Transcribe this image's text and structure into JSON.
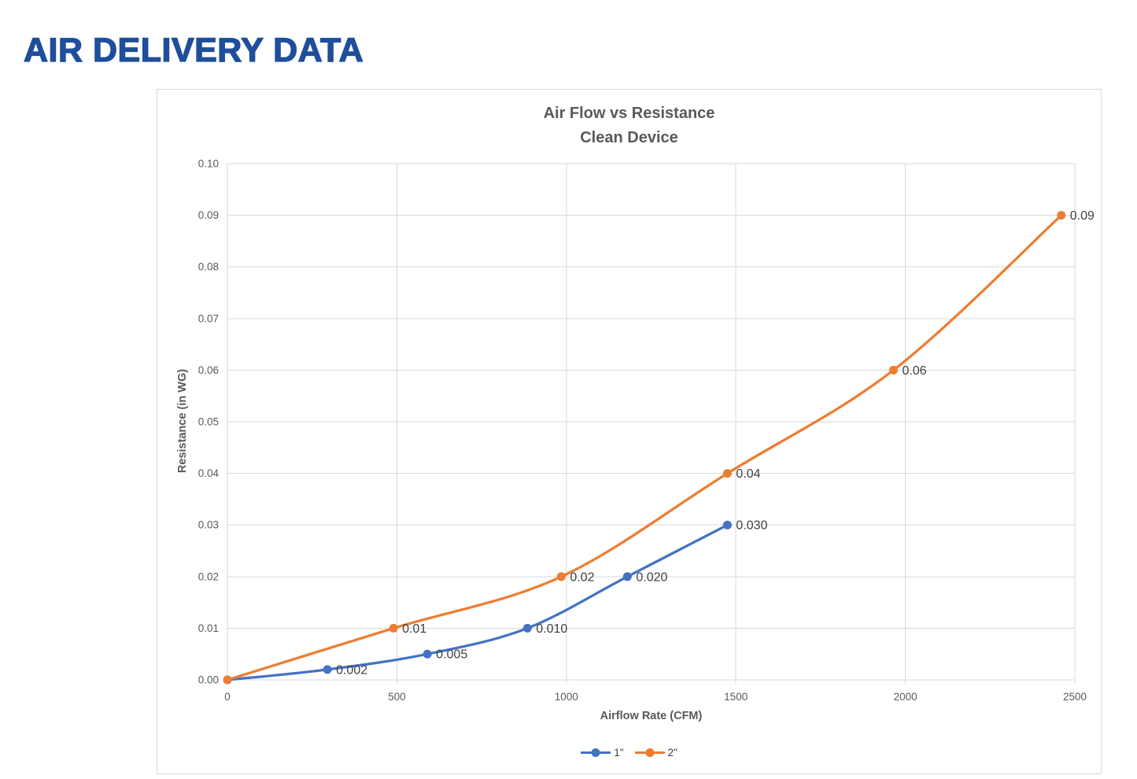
{
  "page": {
    "title": "AIR DELIVERY DATA"
  },
  "colors": {
    "heading": "#1f4e9b",
    "chart_text": "#595959",
    "data_label_text": "#404040",
    "gridline": "#d9d9d9",
    "series_blue": "#4472C4",
    "series_orange": "#ED7D31"
  },
  "chart_data": {
    "type": "line",
    "title": "Air Flow vs Resistance",
    "subtitle": "Clean Device",
    "xlabel": "Airflow Rate (CFM)",
    "ylabel": "Resistance (in WG)",
    "xlim": [
      0,
      2500
    ],
    "ylim": [
      0,
      0.1
    ],
    "grid": true,
    "legend_position": "bottom",
    "marker": "circle",
    "smooth": true,
    "x_ticks": [
      0,
      500,
      1000,
      1500,
      2000,
      2500
    ],
    "x_tick_labels": [
      "0",
      "500",
      "1000",
      "1500",
      "2000",
      "2500"
    ],
    "y_ticks": [
      0,
      0.01,
      0.02,
      0.03,
      0.04,
      0.05,
      0.06,
      0.07,
      0.08,
      0.09,
      0.1
    ],
    "y_tick_labels": [
      "0.00",
      "0.01",
      "0.02",
      "0.03",
      "0.04",
      "0.05",
      "0.06",
      "0.07",
      "0.08",
      "0.09",
      "0.10"
    ],
    "series": [
      {
        "name": "1\"",
        "color": "#4472C4",
        "x": [
          0,
          295,
          590,
          885,
          1180,
          1475
        ],
        "y": [
          0,
          0.002,
          0.005,
          0.01,
          0.02,
          0.03
        ],
        "data_labels": [
          "",
          "0.002",
          "0.005",
          "0.010",
          "0.020",
          "0.030"
        ]
      },
      {
        "name": "2\"",
        "color": "#ED7D31",
        "x": [
          0,
          490,
          985,
          1475,
          1965,
          2460
        ],
        "y": [
          0,
          0.01,
          0.02,
          0.04,
          0.06,
          0.09
        ],
        "data_labels": [
          "",
          "0.01",
          "0.02",
          "0.04",
          "0.06",
          "0.09"
        ]
      }
    ]
  }
}
